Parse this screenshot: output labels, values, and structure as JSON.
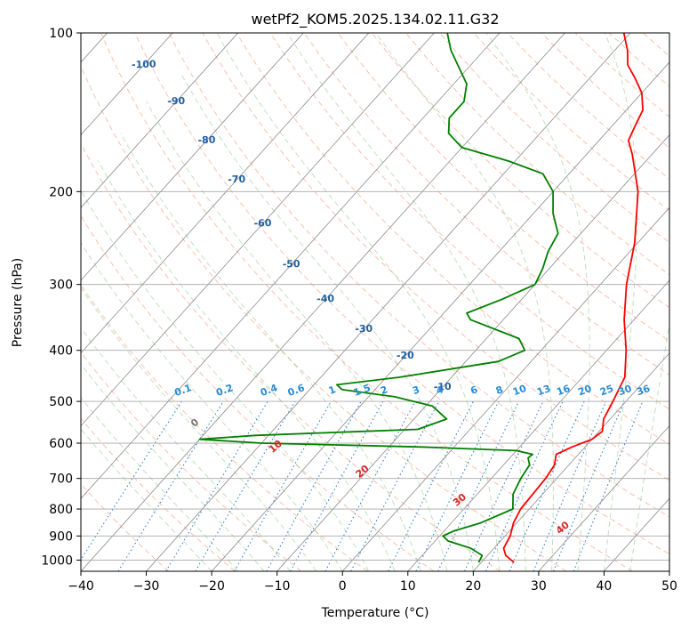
{
  "chart_data": {
    "type": "line",
    "title": "wetPf2_KOM5.2025.134.02.11.G32",
    "xlabel": "Temperature (°C)",
    "ylabel": "Pressure (hPa)",
    "xlim": [
      -40,
      50
    ],
    "ylim": [
      1050,
      100
    ],
    "y_scale": "log",
    "grid": true,
    "x_ticks": [
      "−40",
      "−30",
      "−20",
      "−10",
      "0",
      "10",
      "20",
      "30",
      "40",
      "50"
    ],
    "x_tick_values": [
      -40,
      -30,
      -20,
      -10,
      0,
      10,
      20,
      30,
      40,
      50
    ],
    "y_ticks": [
      "100",
      "200",
      "300",
      "400",
      "500",
      "600",
      "700",
      "800",
      "900",
      "1000"
    ],
    "y_tick_values": [
      100,
      200,
      300,
      400,
      500,
      600,
      700,
      800,
      900,
      1000
    ],
    "isotherm_labels": [
      {
        "text": "-100",
        "p": 115,
        "t": -100
      },
      {
        "text": "-90",
        "p": 135,
        "t": -90
      },
      {
        "text": "-80",
        "p": 160,
        "t": -80
      },
      {
        "text": "-70",
        "p": 190,
        "t": -70
      },
      {
        "text": "-60",
        "p": 230,
        "t": -60
      },
      {
        "text": "-50",
        "p": 275,
        "t": -50
      },
      {
        "text": "-40",
        "p": 320,
        "t": -40
      },
      {
        "text": "-30",
        "p": 365,
        "t": -30
      },
      {
        "text": "-20",
        "p": 410,
        "t": -20
      },
      {
        "text": "-10",
        "p": 470,
        "t": -10
      }
    ],
    "dry_adiabat_labels": [
      {
        "text": "0",
        "p": 550,
        "theta": 0
      },
      {
        "text": "10",
        "p": 610,
        "theta": 10
      },
      {
        "text": "20",
        "p": 680,
        "theta": 20
      },
      {
        "text": "30",
        "p": 770,
        "theta": 30
      },
      {
        "text": "40",
        "p": 870,
        "theta": 40
      }
    ],
    "mixing_ratio_labels": [
      "0.1",
      "0.2",
      "0.4",
      "0.6",
      "1",
      "1.5",
      "2",
      "3",
      "4",
      "6",
      "8",
      "10",
      "13",
      "16",
      "20",
      "25",
      "30",
      "36"
    ],
    "mixing_ratio_values": [
      0.1,
      0.2,
      0.4,
      0.6,
      1,
      1.5,
      2,
      3,
      4,
      6,
      8,
      10,
      13,
      16,
      20,
      25,
      30,
      36
    ],
    "series": [
      {
        "color": "#ff0000",
        "points": [
          {
            "p": 1010,
            "t": 25.0
          },
          {
            "p": 980,
            "t": 22.8
          },
          {
            "p": 950,
            "t": 21.5
          },
          {
            "p": 900,
            "t": 20.8
          },
          {
            "p": 850,
            "t": 19.5
          },
          {
            "p": 800,
            "t": 18.7
          },
          {
            "p": 750,
            "t": 18.5
          },
          {
            "p": 700,
            "t": 18.3
          },
          {
            "p": 660,
            "t": 17.8
          },
          {
            "p": 630,
            "t": 16.6
          },
          {
            "p": 610,
            "t": 18.0
          },
          {
            "p": 590,
            "t": 20.0
          },
          {
            "p": 570,
            "t": 20.5
          },
          {
            "p": 540,
            "t": 19.0
          },
          {
            "p": 500,
            "t": 18.0
          },
          {
            "p": 450,
            "t": 16.5
          },
          {
            "p": 400,
            "t": 13.0
          },
          {
            "p": 350,
            "t": 8.5
          },
          {
            "p": 300,
            "t": 4.0
          },
          {
            "p": 250,
            "t": -0.5
          },
          {
            "p": 200,
            "t": -7.0
          },
          {
            "p": 170,
            "t": -13.0
          },
          {
            "p": 160,
            "t": -15.5
          },
          {
            "p": 150,
            "t": -16.5
          },
          {
            "p": 140,
            "t": -17.5
          },
          {
            "p": 130,
            "t": -20.0
          },
          {
            "p": 122,
            "t": -23.0
          },
          {
            "p": 115,
            "t": -26.0
          },
          {
            "p": 108,
            "t": -28.0
          },
          {
            "p": 100,
            "t": -31.0
          }
        ]
      },
      {
        "color": "#008000",
        "points": [
          {
            "p": 1010,
            "t": 19.6
          },
          {
            "p": 980,
            "t": 19.2
          },
          {
            "p": 950,
            "t": 16.5
          },
          {
            "p": 920,
            "t": 12.0
          },
          {
            "p": 900,
            "t": 10.5
          },
          {
            "p": 880,
            "t": 11.5
          },
          {
            "p": 850,
            "t": 14.5
          },
          {
            "p": 800,
            "t": 17.5
          },
          {
            "p": 750,
            "t": 15.5
          },
          {
            "p": 700,
            "t": 14.5
          },
          {
            "p": 660,
            "t": 14.0
          },
          {
            "p": 640,
            "t": 12.8
          },
          {
            "p": 630,
            "t": 13.0
          },
          {
            "p": 620,
            "t": 10.0
          },
          {
            "p": 610,
            "t": -5.0
          },
          {
            "p": 600,
            "t": -30.0
          },
          {
            "p": 590,
            "t": -40.0
          },
          {
            "p": 580,
            "t": -32.0
          },
          {
            "p": 565,
            "t": -8.0
          },
          {
            "p": 540,
            "t": -5.0
          },
          {
            "p": 510,
            "t": -9.0
          },
          {
            "p": 490,
            "t": -16.0
          },
          {
            "p": 475,
            "t": -25.0
          },
          {
            "p": 465,
            "t": -26.5
          },
          {
            "p": 450,
            "t": -18.0
          },
          {
            "p": 420,
            "t": -5.0
          },
          {
            "p": 400,
            "t": -2.5
          },
          {
            "p": 380,
            "t": -5.0
          },
          {
            "p": 350,
            "t": -15.0
          },
          {
            "p": 340,
            "t": -16.5
          },
          {
            "p": 320,
            "t": -13.0
          },
          {
            "p": 300,
            "t": -10.0
          },
          {
            "p": 280,
            "t": -11.0
          },
          {
            "p": 260,
            "t": -12.5
          },
          {
            "p": 240,
            "t": -13.5
          },
          {
            "p": 220,
            "t": -17.0
          },
          {
            "p": 200,
            "t": -20.0
          },
          {
            "p": 185,
            "t": -24.0
          },
          {
            "p": 175,
            "t": -31.0
          },
          {
            "p": 165,
            "t": -40.0
          },
          {
            "p": 155,
            "t": -44.0
          },
          {
            "p": 145,
            "t": -46.0
          },
          {
            "p": 135,
            "t": -46.0
          },
          {
            "p": 125,
            "t": -48.0
          },
          {
            "p": 115,
            "t": -52.0
          },
          {
            "p": 108,
            "t": -55.0
          },
          {
            "p": 100,
            "t": -58.0
          }
        ]
      }
    ]
  }
}
